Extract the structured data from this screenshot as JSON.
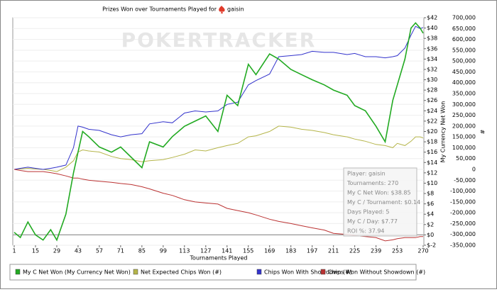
{
  "chart_data": {
    "type": "line",
    "title": "Prizes Won over Tournaments Played for",
    "player": "gaisin",
    "watermark": "POKERTRACKER",
    "x_label": "Tournaments Played",
    "y_label": "My Currency Net Won",
    "y2_label": "#",
    "xlim": [
      1,
      270
    ],
    "xticks": [
      1,
      15,
      29,
      43,
      57,
      71,
      85,
      99,
      113,
      127,
      141,
      155,
      169,
      183,
      197,
      211,
      225,
      239,
      253,
      270
    ],
    "ylim": [
      -2,
      42
    ],
    "yticks": [
      {
        "value": -2,
        "label": "$-2"
      },
      {
        "value": 0,
        "label": "$0"
      },
      {
        "value": 2,
        "label": "$2"
      },
      {
        "value": 4,
        "label": "$4"
      },
      {
        "value": 6,
        "label": "$6"
      },
      {
        "value": 8,
        "label": "$8"
      },
      {
        "value": 10,
        "label": "$10"
      },
      {
        "value": 12,
        "label": "$12"
      },
      {
        "value": 14,
        "label": "$14"
      },
      {
        "value": 16,
        "label": "$16"
      },
      {
        "value": 18,
        "label": "$18"
      },
      {
        "value": 20,
        "label": "$20"
      },
      {
        "value": 22,
        "label": "$22"
      },
      {
        "value": 24,
        "label": "$24"
      },
      {
        "value": 26,
        "label": "$26"
      },
      {
        "value": 28,
        "label": "$28"
      },
      {
        "value": 30,
        "label": "$30"
      },
      {
        "value": 32,
        "label": "$32"
      },
      {
        "value": 34,
        "label": "$34"
      },
      {
        "value": 36,
        "label": "$36"
      },
      {
        "value": 38,
        "label": "$38"
      },
      {
        "value": 40,
        "label": "$40"
      },
      {
        "value": 42,
        "label": "$42"
      }
    ],
    "y2lim": [
      -350000,
      700000
    ],
    "y2ticks": [
      {
        "value": -350000,
        "label": "-350,000"
      },
      {
        "value": -300000,
        "label": "-300,000"
      },
      {
        "value": -250000,
        "label": "-250,000"
      },
      {
        "value": -200000,
        "label": "-200,000"
      },
      {
        "value": -150000,
        "label": "-150,000"
      },
      {
        "value": -100000,
        "label": "-100,000"
      },
      {
        "value": -50000,
        "label": "-50,000"
      },
      0,
      {
        "value": 50000,
        "label": "50,000"
      },
      {
        "value": 100000,
        "label": "100,000"
      },
      {
        "value": 150000,
        "label": "150,000"
      },
      {
        "value": 200000,
        "label": "200,000"
      },
      {
        "value": 250000,
        "label": "250,000"
      },
      {
        "value": 300000,
        "label": "300,000"
      },
      {
        "value": 350000,
        "label": "350,000"
      },
      {
        "value": 400000,
        "label": "400,000"
      },
      {
        "value": 450000,
        "label": "450,000"
      },
      {
        "value": 500000,
        "label": "500,000"
      },
      {
        "value": 550000,
        "label": "550,000"
      },
      {
        "value": 600000,
        "label": "600,000"
      },
      {
        "value": 650000,
        "label": "650,000"
      },
      {
        "value": 700000,
        "label": "700,000"
      }
    ],
    "grid": true,
    "x": [
      1,
      5,
      10,
      15,
      20,
      25,
      29,
      35,
      40,
      43,
      46,
      50,
      57,
      65,
      71,
      78,
      85,
      90,
      99,
      105,
      113,
      120,
      127,
      135,
      141,
      148,
      155,
      160,
      169,
      175,
      183,
      190,
      197,
      205,
      211,
      220,
      225,
      232,
      239,
      245,
      250,
      253,
      258,
      262,
      265,
      268,
      270
    ],
    "series": [
      {
        "name": "My C Net Won (My Currency Net Won)",
        "color": "#22aa22",
        "axis": "y",
        "values": [
          0.5,
          -0.5,
          2.5,
          0,
          -1,
          1,
          -1,
          4,
          12,
          16,
          20,
          19,
          17,
          16,
          17,
          15,
          13,
          18,
          17,
          19,
          21,
          22,
          23,
          20,
          27,
          25,
          33,
          31,
          35,
          34,
          32,
          31,
          30,
          29,
          28,
          27,
          25,
          24,
          21,
          18,
          26,
          29,
          34,
          40,
          41,
          40,
          39
        ]
      },
      {
        "name": "Net Expected Chips Won (#)",
        "color": "#b5b54a",
        "axis": "y2",
        "values": [
          0,
          2000,
          5000,
          2000,
          0,
          -5000,
          -10000,
          10000,
          40000,
          80000,
          90000,
          85000,
          80000,
          60000,
          50000,
          45000,
          35000,
          40000,
          45000,
          55000,
          70000,
          90000,
          85000,
          100000,
          110000,
          120000,
          150000,
          155000,
          175000,
          200000,
          195000,
          185000,
          180000,
          170000,
          160000,
          150000,
          140000,
          130000,
          115000,
          110000,
          100000,
          120000,
          110000,
          130000,
          150000,
          150000,
          145000
        ]
      },
      {
        "name": "Chips Won With Showdown (#)",
        "color": "#3333cc",
        "axis": "y2",
        "values": [
          0,
          5000,
          10000,
          5000,
          0,
          5000,
          10000,
          20000,
          100000,
          200000,
          195000,
          185000,
          180000,
          160000,
          150000,
          160000,
          165000,
          210000,
          220000,
          215000,
          260000,
          270000,
          265000,
          270000,
          300000,
          310000,
          390000,
          410000,
          440000,
          520000,
          525000,
          530000,
          545000,
          540000,
          540000,
          530000,
          535000,
          520000,
          520000,
          515000,
          520000,
          525000,
          560000,
          620000,
          660000,
          650000,
          655000
        ]
      },
      {
        "name": "Chips Won Without Showdown (#)",
        "color": "#bb3333",
        "axis": "y2",
        "values": [
          0,
          -5000,
          -10000,
          -10000,
          -10000,
          -15000,
          -20000,
          -30000,
          -40000,
          -40000,
          -45000,
          -50000,
          -55000,
          -60000,
          -65000,
          -70000,
          -80000,
          -90000,
          -110000,
          -120000,
          -140000,
          -150000,
          -155000,
          -160000,
          -180000,
          -190000,
          -200000,
          -210000,
          -230000,
          -240000,
          -250000,
          -260000,
          -270000,
          -280000,
          -295000,
          -300000,
          -305000,
          -310000,
          -315000,
          -330000,
          -325000,
          -320000,
          -315000,
          -315000,
          -315000,
          -310000,
          -310000
        ]
      }
    ],
    "info_box": [
      "Player: gaisin",
      "Tournaments: 270",
      "My C Net Won: $38.85",
      "My C / Tournament: $0.14",
      "Days Played: 5",
      "My C / Day: $7.77",
      "ROI %: 37.94"
    ]
  }
}
